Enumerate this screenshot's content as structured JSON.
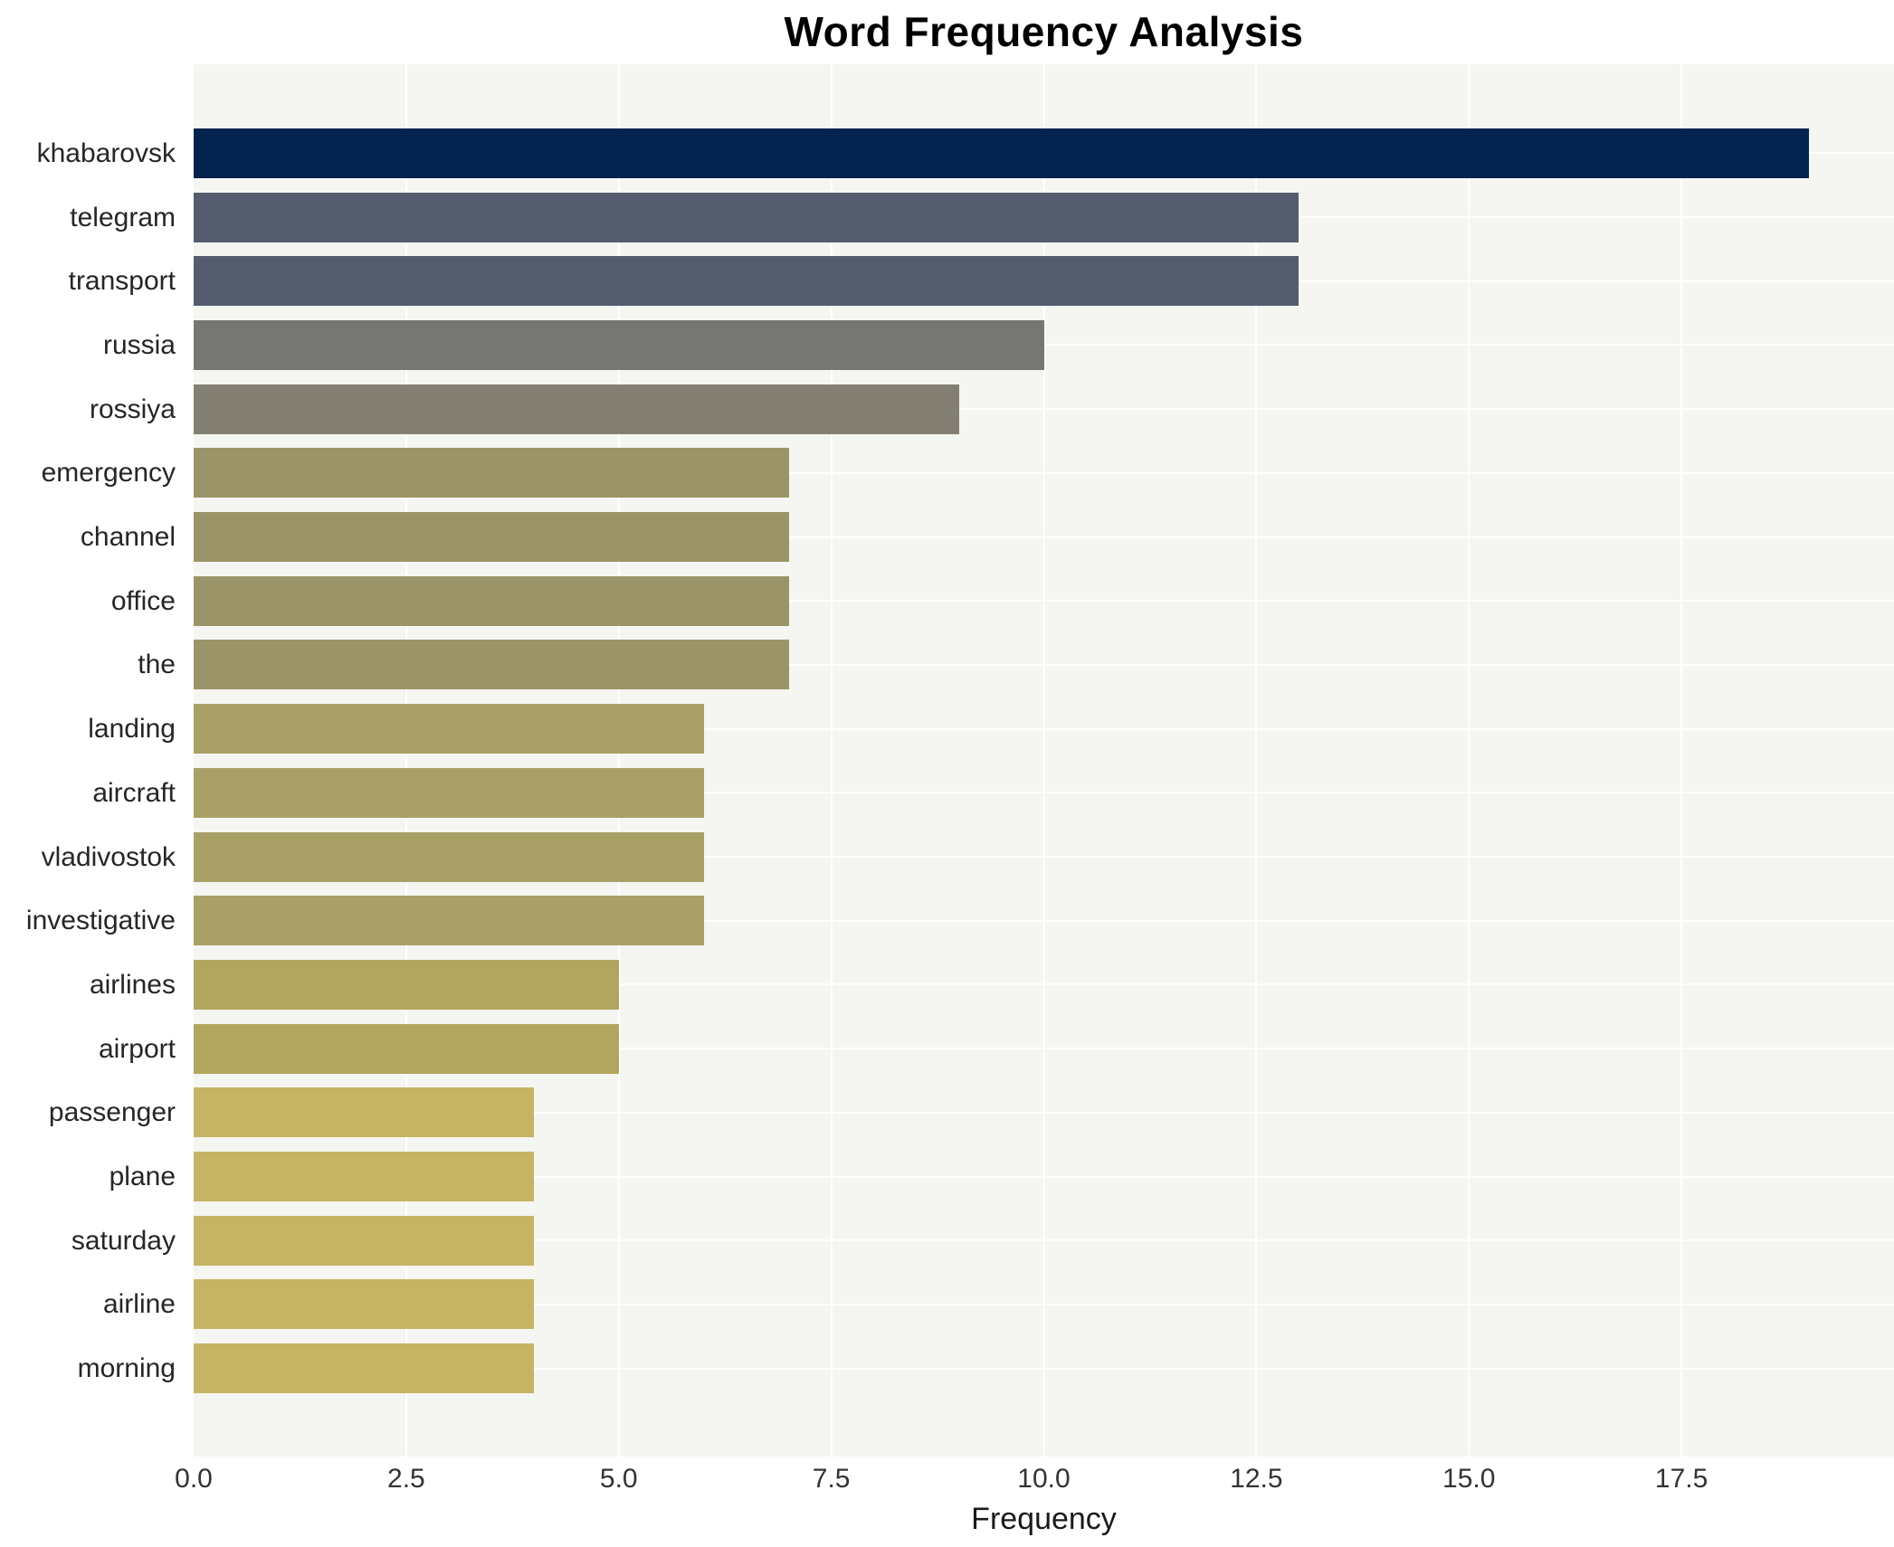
{
  "chart_data": {
    "type": "bar",
    "orientation": "horizontal",
    "title": "Word Frequency Analysis",
    "xlabel": "Frequency",
    "ylabel": "",
    "categories": [
      "khabarovsk",
      "telegram",
      "transport",
      "russia",
      "rossiya",
      "emergency",
      "channel",
      "office",
      "the",
      "landing",
      "aircraft",
      "vladivostok",
      "investigative",
      "airlines",
      "airport",
      "passenger",
      "plane",
      "saturday",
      "airline",
      "morning"
    ],
    "values": [
      19,
      13,
      13,
      10,
      9,
      7,
      7,
      7,
      7,
      6,
      6,
      6,
      6,
      5,
      5,
      4,
      4,
      4,
      4,
      4
    ],
    "bar_colors": [
      "#03234e",
      "#545c6e",
      "#545c6e",
      "#767672",
      "#847f73",
      "#9b9468",
      "#9b9468",
      "#9b9468",
      "#9b9468",
      "#a9a067",
      "#a9a067",
      "#a9a067",
      "#a9a067",
      "#b2a65e",
      "#b2a65e",
      "#c5b464",
      "#c5b464",
      "#c5b464",
      "#c5b464",
      "#c5b464"
    ],
    "xlim": [
      0,
      20
    ],
    "xticks": [
      0.0,
      2.5,
      5.0,
      7.5,
      10.0,
      12.5,
      15.0,
      17.5
    ],
    "xtick_labels": [
      "0.0",
      "2.5",
      "5.0",
      "7.5",
      "10.0",
      "12.5",
      "15.0",
      "17.5"
    ],
    "grid": "on",
    "legend": "none",
    "plot_background": "#f5f5f2",
    "grid_color": "#ffffff",
    "colormap": "cividis"
  }
}
